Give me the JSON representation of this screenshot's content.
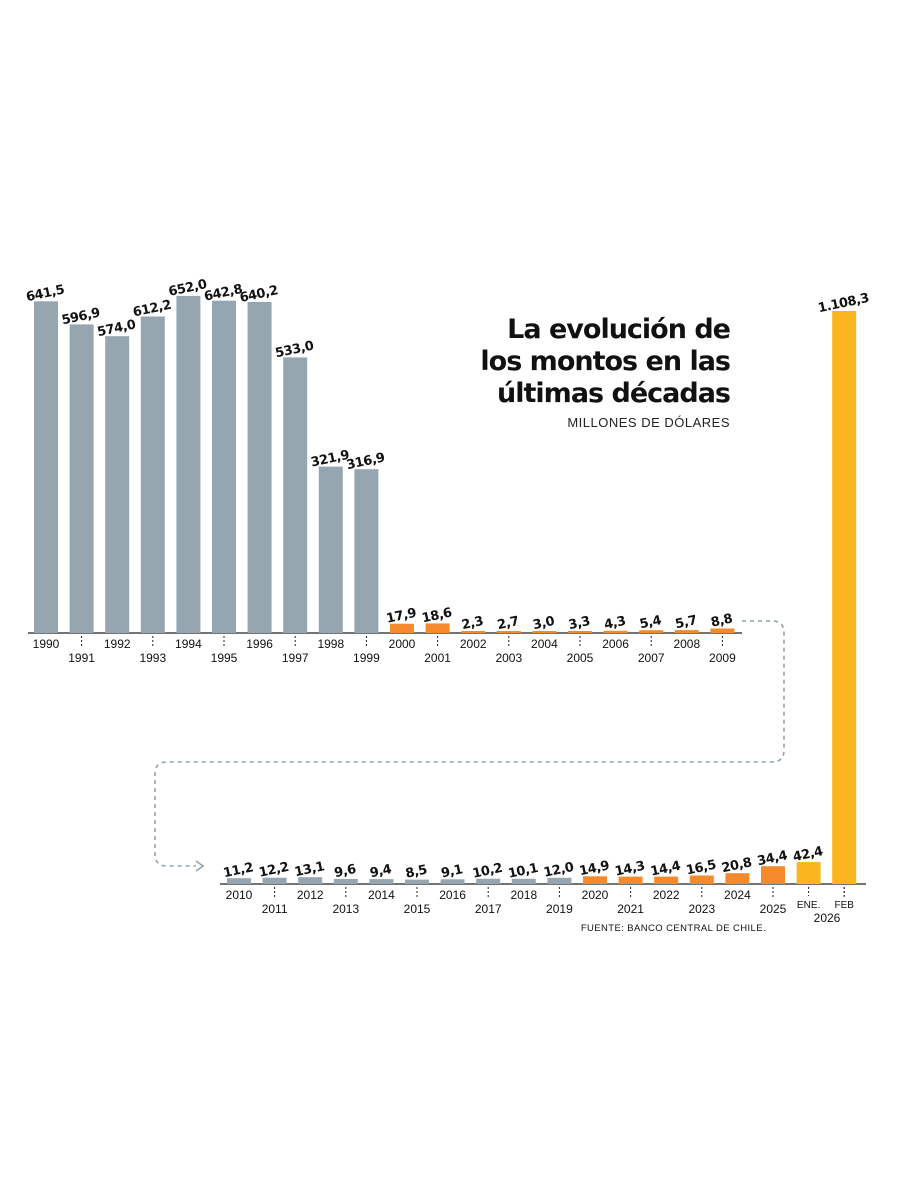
{
  "chart_data": {
    "type": "bar",
    "title_lines": [
      "La evolución de",
      "los montos en las",
      "últimas décadas"
    ],
    "subtitle": "MILLONES DE DÓLARES",
    "source": "FUENTE: BANCO CENTRAL DE CHILE.",
    "colors": {
      "gray": "#95a6b1",
      "orange": "#f58a2d",
      "yellow": "#fbb51f"
    },
    "panels": [
      {
        "id": "top",
        "bars": [
          {
            "label": "1990",
            "value": 641.5,
            "value_label": "641,5",
            "color": "gray"
          },
          {
            "label": "1991",
            "value": 596.9,
            "value_label": "596,9",
            "color": "gray"
          },
          {
            "label": "1992",
            "value": 574.0,
            "value_label": "574,0",
            "color": "gray"
          },
          {
            "label": "1993",
            "value": 612.2,
            "value_label": "612,2",
            "color": "gray"
          },
          {
            "label": "1994",
            "value": 652.0,
            "value_label": "652,0",
            "color": "gray"
          },
          {
            "label": "1995",
            "value": 642.8,
            "value_label": "642,8",
            "color": "gray"
          },
          {
            "label": "1996",
            "value": 640.2,
            "value_label": "640,2",
            "color": "gray"
          },
          {
            "label": "1997",
            "value": 533.0,
            "value_label": "533,0",
            "color": "gray"
          },
          {
            "label": "1998",
            "value": 321.9,
            "value_label": "321,9",
            "color": "gray"
          },
          {
            "label": "1999",
            "value": 316.9,
            "value_label": "316,9",
            "color": "gray"
          },
          {
            "label": "2000",
            "value": 17.9,
            "value_label": "17,9",
            "color": "orange"
          },
          {
            "label": "2001",
            "value": 18.6,
            "value_label": "18,6",
            "color": "orange"
          },
          {
            "label": "2002",
            "value": 2.3,
            "value_label": "2,3",
            "color": "orange"
          },
          {
            "label": "2003",
            "value": 2.7,
            "value_label": "2,7",
            "color": "orange"
          },
          {
            "label": "2004",
            "value": 3.0,
            "value_label": "3,0",
            "color": "orange"
          },
          {
            "label": "2005",
            "value": 3.3,
            "value_label": "3,3",
            "color": "orange"
          },
          {
            "label": "2006",
            "value": 4.3,
            "value_label": "4,3",
            "color": "orange"
          },
          {
            "label": "2007",
            "value": 5.4,
            "value_label": "5,4",
            "color": "orange"
          },
          {
            "label": "2008",
            "value": 5.7,
            "value_label": "5,7",
            "color": "orange"
          },
          {
            "label": "2009",
            "value": 8.8,
            "value_label": "8,8",
            "color": "orange"
          }
        ]
      },
      {
        "id": "bottom",
        "bars": [
          {
            "label": "2010",
            "value": 11.2,
            "value_label": "11,2",
            "color": "gray"
          },
          {
            "label": "2011",
            "value": 12.2,
            "value_label": "12,2",
            "color": "gray"
          },
          {
            "label": "2012",
            "value": 13.1,
            "value_label": "13,1",
            "color": "gray"
          },
          {
            "label": "2013",
            "value": 9.6,
            "value_label": "9,6",
            "color": "gray"
          },
          {
            "label": "2014",
            "value": 9.4,
            "value_label": "9,4",
            "color": "gray"
          },
          {
            "label": "2015",
            "value": 8.5,
            "value_label": "8,5",
            "color": "gray"
          },
          {
            "label": "2016",
            "value": 9.1,
            "value_label": "9,1",
            "color": "gray"
          },
          {
            "label": "2017",
            "value": 10.2,
            "value_label": "10,2",
            "color": "gray"
          },
          {
            "label": "2018",
            "value": 10.1,
            "value_label": "10,1",
            "color": "gray"
          },
          {
            "label": "2019",
            "value": 12.0,
            "value_label": "12,0",
            "color": "gray"
          },
          {
            "label": "2020",
            "value": 14.9,
            "value_label": "14,9",
            "color": "orange"
          },
          {
            "label": "2021",
            "value": 14.3,
            "value_label": "14,3",
            "color": "orange"
          },
          {
            "label": "2022",
            "value": 14.4,
            "value_label": "14,4",
            "color": "orange"
          },
          {
            "label": "2023",
            "value": 16.5,
            "value_label": "16,5",
            "color": "orange"
          },
          {
            "label": "2024",
            "value": 20.8,
            "value_label": "20,8",
            "color": "orange"
          },
          {
            "label": "2025",
            "value": 34.4,
            "value_label": "34,4",
            "color": "orange"
          },
          {
            "label": "ENE.",
            "value": 42.4,
            "value_label": "42,4",
            "color": "yellow"
          },
          {
            "label": "FEB",
            "value": 1108.3,
            "value_label": "1.108,3",
            "color": "yellow"
          }
        ],
        "extra_tick_labels": [
          "2026"
        ]
      }
    ]
  }
}
